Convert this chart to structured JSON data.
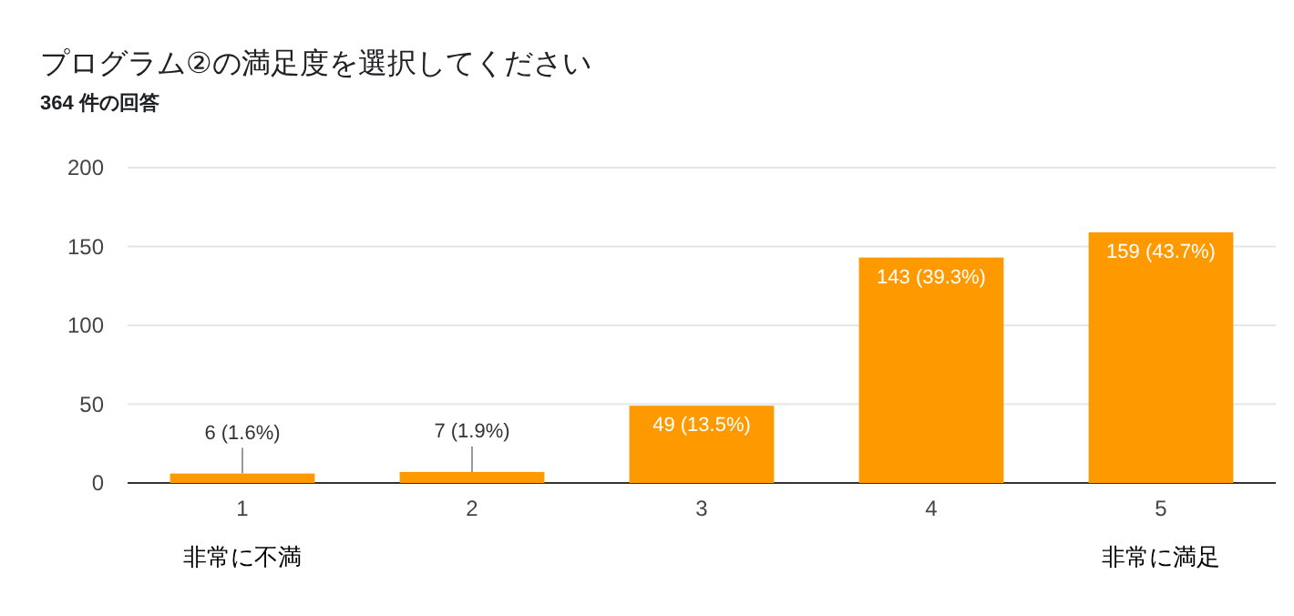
{
  "chart_data": {
    "type": "bar",
    "title": "プログラム②の満足度を選択してください",
    "subtitle": "364 件の回答",
    "categories": [
      "1",
      "2",
      "3",
      "4",
      "5"
    ],
    "values": [
      6,
      7,
      49,
      143,
      159
    ],
    "value_labels": [
      "6 (1.6%)",
      "7 (1.9%)",
      "49 (13.5%)",
      "143 (39.3%)",
      "159 (43.7%)"
    ],
    "color": "#ff9900",
    "ylim": [
      0,
      200
    ],
    "yticks": [
      0,
      50,
      100,
      150,
      200
    ],
    "grid": "y",
    "annotations": [
      "非常に不満",
      "非常に満足"
    ]
  }
}
